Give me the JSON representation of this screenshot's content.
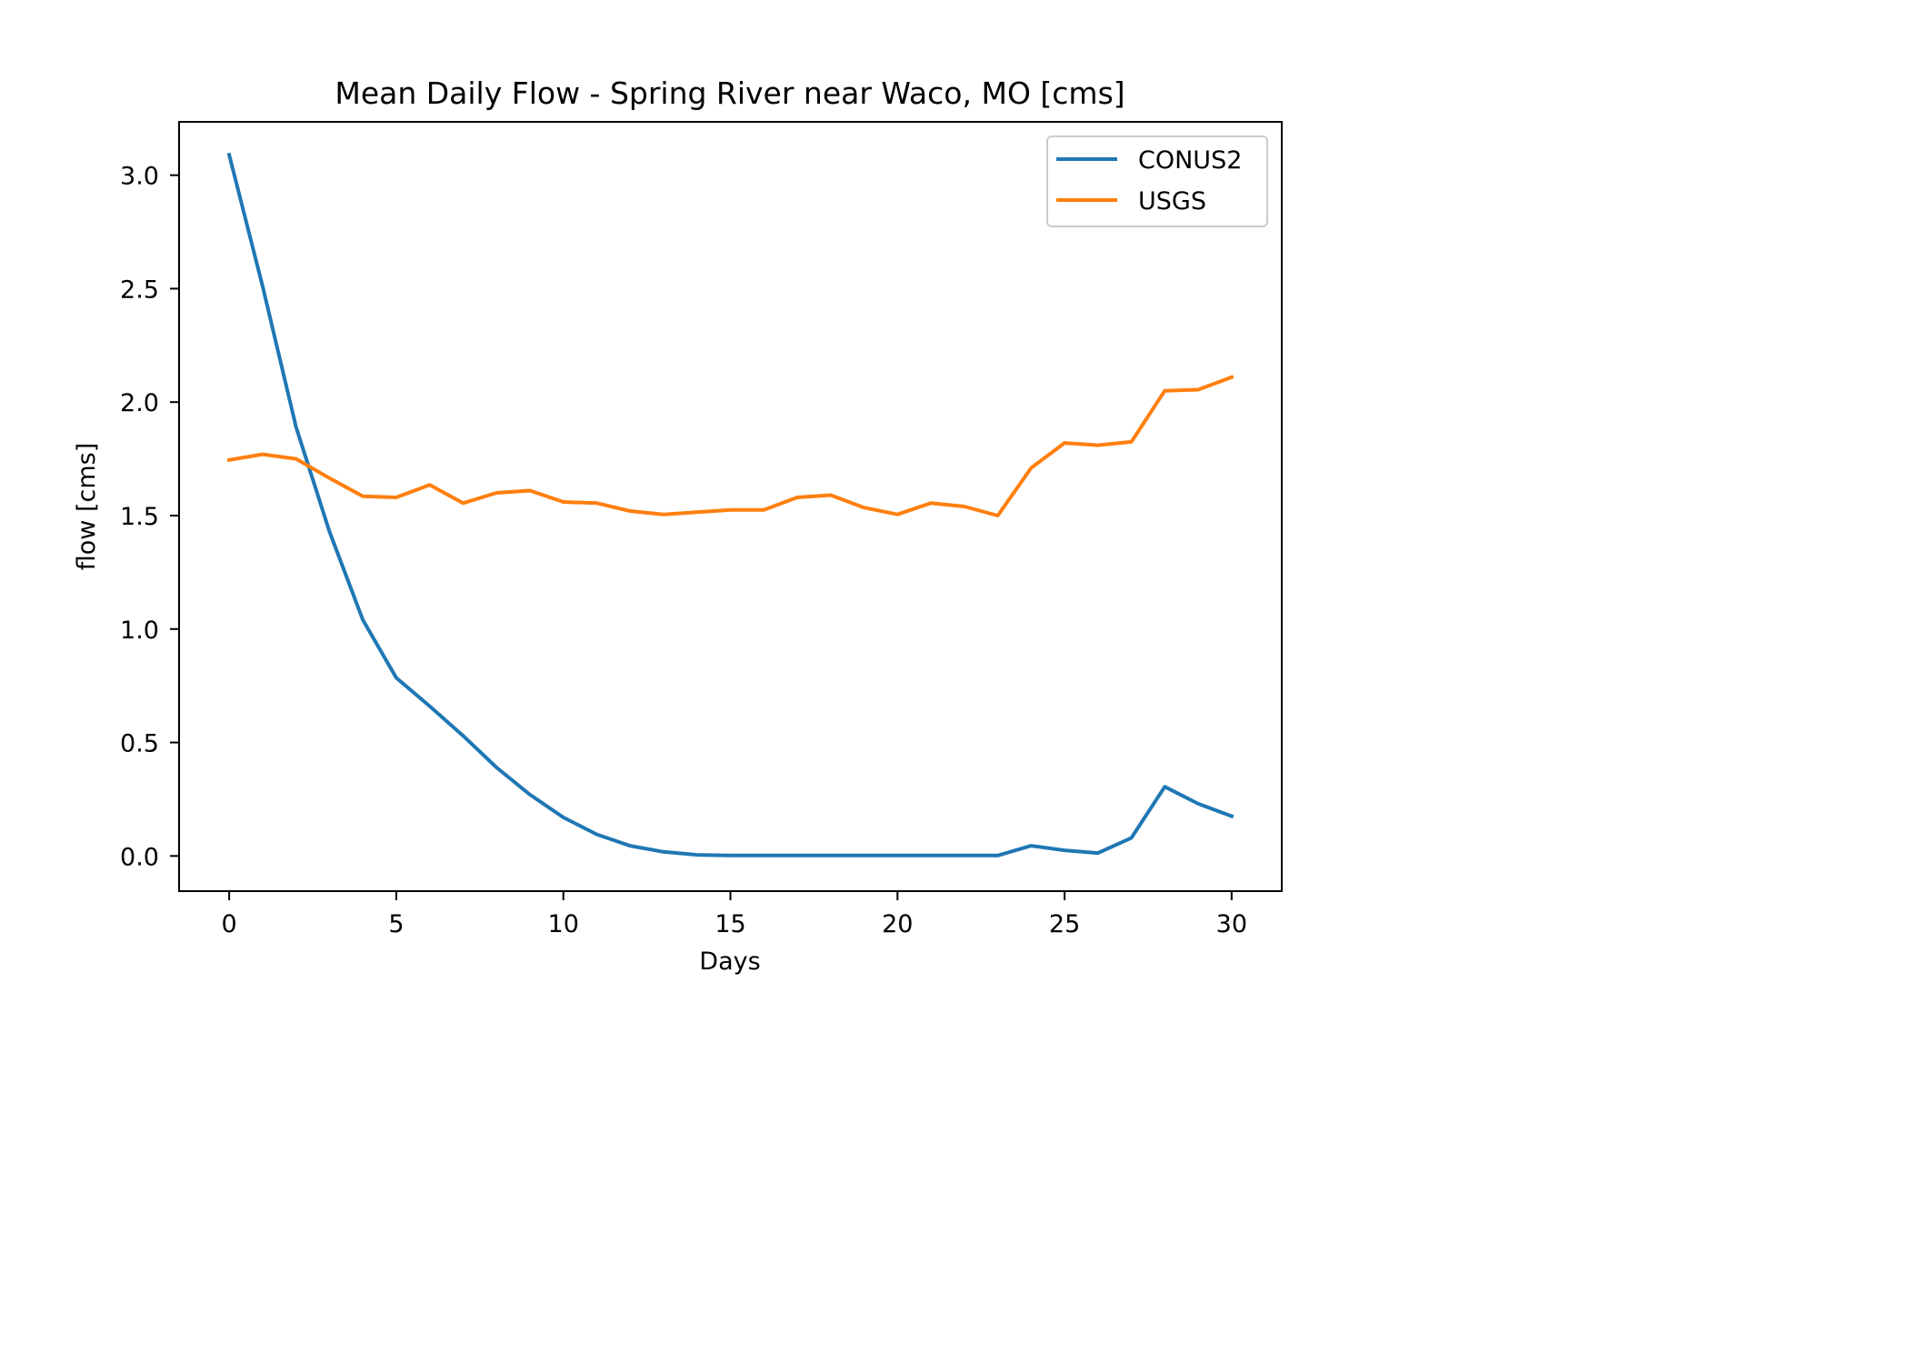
{
  "chart_data": {
    "type": "line",
    "title": "Mean Daily Flow - Spring River near Waco, MO [cms]",
    "xlabel": "Days",
    "ylabel": "flow [cms]",
    "xlim": [
      -1.5,
      31.5
    ],
    "ylim": [
      -0.155,
      3.235
    ],
    "xticks": [
      0,
      5,
      10,
      15,
      20,
      25,
      30
    ],
    "xtick_labels": [
      "0",
      "5",
      "10",
      "15",
      "20",
      "25",
      "30"
    ],
    "yticks": [
      0.0,
      0.5,
      1.0,
      1.5,
      2.0,
      2.5,
      3.0
    ],
    "ytick_labels": [
      "0.0",
      "0.5",
      "1.0",
      "1.5",
      "2.0",
      "2.5",
      "3.0"
    ],
    "grid": false,
    "legend_position": "top-right",
    "x": [
      0,
      1,
      2,
      3,
      4,
      5,
      6,
      7,
      8,
      9,
      10,
      11,
      12,
      13,
      14,
      15,
      16,
      17,
      18,
      19,
      20,
      21,
      22,
      23,
      24,
      25,
      26,
      27,
      28,
      29,
      30
    ],
    "series": [
      {
        "name": "CONUS2",
        "color": "#1f77b4",
        "values": [
          3.09,
          2.51,
          1.89,
          1.43,
          1.04,
          0.785,
          0.66,
          0.53,
          0.39,
          0.27,
          0.17,
          0.095,
          0.045,
          0.018,
          0.005,
          0.002,
          0.002,
          0.002,
          0.002,
          0.002,
          0.002,
          0.002,
          0.002,
          0.002,
          0.045,
          0.025,
          0.013,
          0.08,
          0.305,
          0.23,
          0.175
        ]
      },
      {
        "name": "USGS",
        "color": "#ff7f0e",
        "values": [
          1.745,
          1.77,
          1.75,
          1.665,
          1.585,
          1.58,
          1.635,
          1.555,
          1.6,
          1.61,
          1.56,
          1.555,
          1.52,
          1.505,
          1.515,
          1.525,
          1.525,
          1.58,
          1.59,
          1.535,
          1.505,
          1.555,
          1.54,
          1.5,
          1.71,
          1.82,
          1.81,
          1.825,
          2.05,
          2.055,
          2.11
        ]
      }
    ]
  }
}
